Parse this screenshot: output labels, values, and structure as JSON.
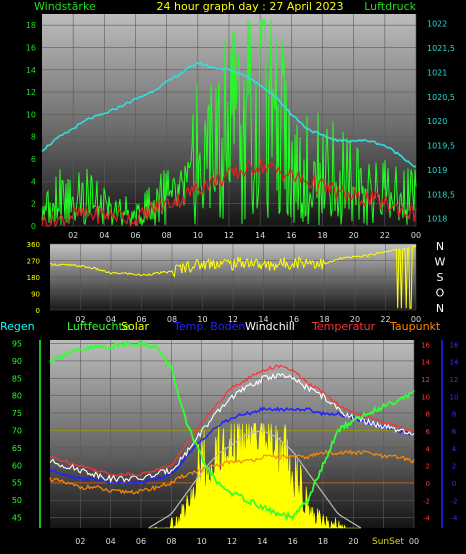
{
  "header": {
    "left_label": "Windstärke",
    "title": "24 hour graph day : 27 April 2023",
    "right_label": "Luftdruck"
  },
  "legend": [
    {
      "key": "regen",
      "label": "Regen",
      "color": "#00ffff"
    },
    {
      "key": "luftfeuchte",
      "label": "Luftfeuchte",
      "color": "#33ff33"
    },
    {
      "key": "solar",
      "label": "Solar",
      "color": "#ffff00"
    },
    {
      "key": "temp_boden",
      "label": "Temp. Boden",
      "color": "#2222ff"
    },
    {
      "key": "windchill",
      "label": "Windchill",
      "color": "#ffffff"
    },
    {
      "key": "temperatur",
      "label": "Temperatur",
      "color": "#ff3333"
    },
    {
      "key": "taupunkt",
      "label": "Taupunkt",
      "color": "#ff8800"
    }
  ],
  "compass": [
    "N",
    "W",
    "S",
    "O",
    "N"
  ],
  "sun_labels": {
    "rise": "SunSet",
    "set": "Set"
  },
  "chart_data": [
    {
      "type": "line",
      "name": "wind-pressure",
      "x_ticks": [
        "02",
        "04",
        "06",
        "08",
        "10",
        "12",
        "14",
        "16",
        "18",
        "20",
        "22",
        "00"
      ],
      "y_left": {
        "label": "Windstärke",
        "ticks": [
          "0",
          "2",
          "4",
          "6",
          "8",
          "10",
          "12",
          "14",
          "16",
          "18"
        ],
        "range": [
          0,
          19
        ]
      },
      "y_right": {
        "label": "Luftdruck",
        "ticks": [
          "1018",
          "1018,5",
          "1019",
          "1019,5",
          "1020",
          "1020,5",
          "1021",
          "1021,5",
          "1022"
        ],
        "range": [
          1017.85,
          1022.2
        ]
      },
      "series": [
        {
          "key": "pressure",
          "color": "#33dddd",
          "axis": "right",
          "x": [
            0,
            1,
            2,
            3,
            4,
            5,
            6,
            7,
            8,
            9,
            10,
            11,
            12,
            13,
            14,
            15,
            16,
            17,
            18,
            19,
            20,
            21,
            22,
            23,
            24
          ],
          "y": [
            1019.4,
            1019.65,
            1019.85,
            1020.05,
            1020.15,
            1020.3,
            1020.45,
            1020.6,
            1020.8,
            1021.0,
            1021.2,
            1021.1,
            1021.05,
            1020.95,
            1020.75,
            1020.5,
            1020.15,
            1019.85,
            1019.7,
            1019.6,
            1019.6,
            1019.6,
            1019.5,
            1019.3,
            1019.05
          ]
        },
        {
          "key": "wind_avg",
          "color": "#dd2222",
          "axis": "left",
          "x": [
            0,
            1,
            2,
            3,
            4,
            5,
            6,
            7,
            8,
            9,
            10,
            11,
            12,
            13,
            14,
            15,
            16,
            17,
            18,
            19,
            20,
            21,
            22,
            23,
            24
          ],
          "y": [
            0.5,
            0.5,
            1.0,
            1.0,
            1.0,
            1.0,
            0.5,
            1.5,
            2.0,
            2.5,
            3.5,
            4.0,
            4.5,
            5.0,
            5.5,
            5.0,
            4.5,
            4.0,
            3.5,
            3.0,
            2.5,
            2.5,
            2.0,
            1.5,
            1.0
          ]
        },
        {
          "key": "wind_gust",
          "color": "#22ff22",
          "axis": "left",
          "x": [
            0,
            1,
            2,
            3,
            4,
            5,
            6,
            7,
            8,
            9,
            10,
            11,
            12,
            13,
            14,
            15,
            16,
            17,
            18,
            19,
            20,
            21,
            22,
            23,
            24
          ],
          "y": [
            2.0,
            3.5,
            3.5,
            3.5,
            3.0,
            2.0,
            1.5,
            2.5,
            4.0,
            6.0,
            9.0,
            10.0,
            12.0,
            14.0,
            18.0,
            13.0,
            11.0,
            9.0,
            8.0,
            6.0,
            5.0,
            4.5,
            4.0,
            3.5,
            3.5
          ]
        }
      ]
    },
    {
      "type": "line",
      "name": "wind-direction",
      "x_ticks": [
        "02",
        "04",
        "06",
        "08",
        "10",
        "12",
        "14",
        "16",
        "18",
        "20",
        "22",
        "00"
      ],
      "y_left": {
        "ticks": [
          "0",
          "90",
          "180",
          "270",
          "360"
        ],
        "range": [
          0,
          360
        ]
      },
      "series": [
        {
          "key": "direction",
          "color": "#ffff00",
          "x": [
            0,
            1,
            2,
            3,
            4,
            5,
            6,
            7,
            8,
            9,
            10,
            11,
            12,
            13,
            14,
            15,
            16,
            17,
            18,
            19,
            20,
            21,
            22,
            23,
            24
          ],
          "y": [
            250,
            245,
            240,
            225,
            200,
            200,
            190,
            200,
            210,
            240,
            250,
            260,
            250,
            265,
            240,
            250,
            260,
            265,
            250,
            280,
            290,
            300,
            320,
            330,
            350
          ]
        }
      ]
    },
    {
      "type": "line",
      "name": "climate",
      "x_ticks": [
        "02",
        "04",
        "06",
        "08",
        "10",
        "12",
        "14",
        "16",
        "18",
        "20",
        "22",
        "00"
      ],
      "y_left": {
        "ticks": [
          "45",
          "50",
          "55",
          "60",
          "65",
          "70",
          "75",
          "80",
          "85",
          "90",
          "95"
        ],
        "range": [
          42,
          96
        ]
      },
      "y_right": {
        "ticks": [
          "-4",
          "-2",
          "0",
          "2",
          "4",
          "6",
          "8",
          "10",
          "12",
          "14",
          "16"
        ],
        "range": [
          -5.2,
          16.5
        ]
      },
      "series": [
        {
          "key": "luftfeuchte",
          "color": "#33ff33",
          "axis": "left",
          "x": [
            0,
            1,
            2,
            3,
            4,
            5,
            6,
            7,
            8,
            9,
            10,
            11,
            12,
            13,
            14,
            15,
            16,
            17,
            18,
            19,
            20,
            21,
            22,
            23,
            24
          ],
          "y": [
            90,
            92,
            93,
            94,
            94,
            95,
            95,
            94,
            88,
            72,
            62,
            55,
            52,
            50,
            48,
            46,
            45,
            50,
            60,
            70,
            73,
            75,
            77,
            79,
            81
          ]
        },
        {
          "key": "temperatur",
          "color": "#ff3333",
          "axis": "right",
          "x": [
            0,
            1,
            2,
            3,
            4,
            5,
            6,
            7,
            8,
            9,
            10,
            11,
            12,
            13,
            14,
            15,
            16,
            17,
            18,
            19,
            20,
            21,
            22,
            23,
            24
          ],
          "y": [
            3.0,
            2.5,
            2.0,
            1.5,
            1.0,
            1.0,
            1.0,
            1.5,
            2.0,
            4.5,
            7.0,
            9.0,
            11.0,
            12.0,
            13.0,
            13.5,
            13.0,
            11.5,
            10.5,
            9.0,
            8.0,
            7.5,
            7.0,
            6.5,
            6.0
          ]
        },
        {
          "key": "windchill",
          "color": "#ffffff",
          "axis": "right",
          "x": [
            0,
            1,
            2,
            3,
            4,
            5,
            6,
            7,
            8,
            9,
            10,
            11,
            12,
            13,
            14,
            15,
            16,
            17,
            18,
            19,
            20,
            21,
            22,
            23,
            24
          ],
          "y": [
            2.5,
            2.0,
            1.5,
            1.0,
            0.5,
            0.5,
            0.5,
            1.0,
            1.5,
            3.5,
            6.0,
            8.0,
            10.0,
            11.0,
            12.0,
            12.5,
            12.0,
            11.0,
            10.0,
            8.5,
            7.5,
            7.0,
            6.5,
            6.0,
            5.5
          ]
        },
        {
          "key": "temp_boden",
          "color": "#2222ff",
          "axis": "right",
          "x": [
            0,
            1,
            2,
            3,
            4,
            5,
            6,
            7,
            8,
            9,
            10,
            11,
            12,
            13,
            14,
            15,
            16,
            17,
            18,
            19,
            20,
            21,
            22,
            23,
            24
          ],
          "y": [
            1.5,
            1.0,
            0.5,
            0.5,
            0.0,
            0.0,
            0.0,
            0.5,
            1.0,
            3.0,
            5.0,
            6.5,
            7.5,
            8.0,
            8.5,
            8.5,
            8.5,
            8.5,
            8.0,
            8.0,
            7.5,
            7.0,
            6.5,
            6.0,
            5.5
          ]
        },
        {
          "key": "taupunkt",
          "color": "#ff8800",
          "axis": "right",
          "x": [
            0,
            1,
            2,
            3,
            4,
            5,
            6,
            7,
            8,
            9,
            10,
            11,
            12,
            13,
            14,
            15,
            16,
            17,
            18,
            19,
            20,
            21,
            22,
            23,
            24
          ],
          "y": [
            0.5,
            0.0,
            -0.5,
            -0.5,
            -1.0,
            -1.0,
            -1.0,
            -0.5,
            0.0,
            1.0,
            1.5,
            2.0,
            2.5,
            2.5,
            3.0,
            3.0,
            3.0,
            3.0,
            3.5,
            3.5,
            3.5,
            3.5,
            3.0,
            3.0,
            2.5
          ]
        },
        {
          "key": "solar_theoretical",
          "color": "#bbbbbb",
          "axis": "left",
          "x": [
            6.5,
            8,
            9,
            10,
            11,
            12,
            13,
            14,
            15,
            16,
            17,
            18,
            19,
            20.5
          ],
          "y": [
            42,
            46,
            52,
            58,
            63,
            66,
            69,
            70,
            68,
            64,
            58,
            52,
            46,
            42
          ]
        },
        {
          "key": "solar",
          "color": "#ffff00",
          "axis": "left",
          "x": [
            6.5,
            7.5,
            8.5,
            9.5,
            10.5,
            11.5,
            12.5,
            13.5,
            14.5,
            15.5,
            16.5,
            17.5,
            18.5,
            19.5,
            20.5
          ],
          "y": [
            42,
            43,
            48,
            55,
            60,
            62,
            65,
            70,
            68,
            60,
            52,
            48,
            46,
            44,
            42
          ]
        }
      ]
    }
  ]
}
